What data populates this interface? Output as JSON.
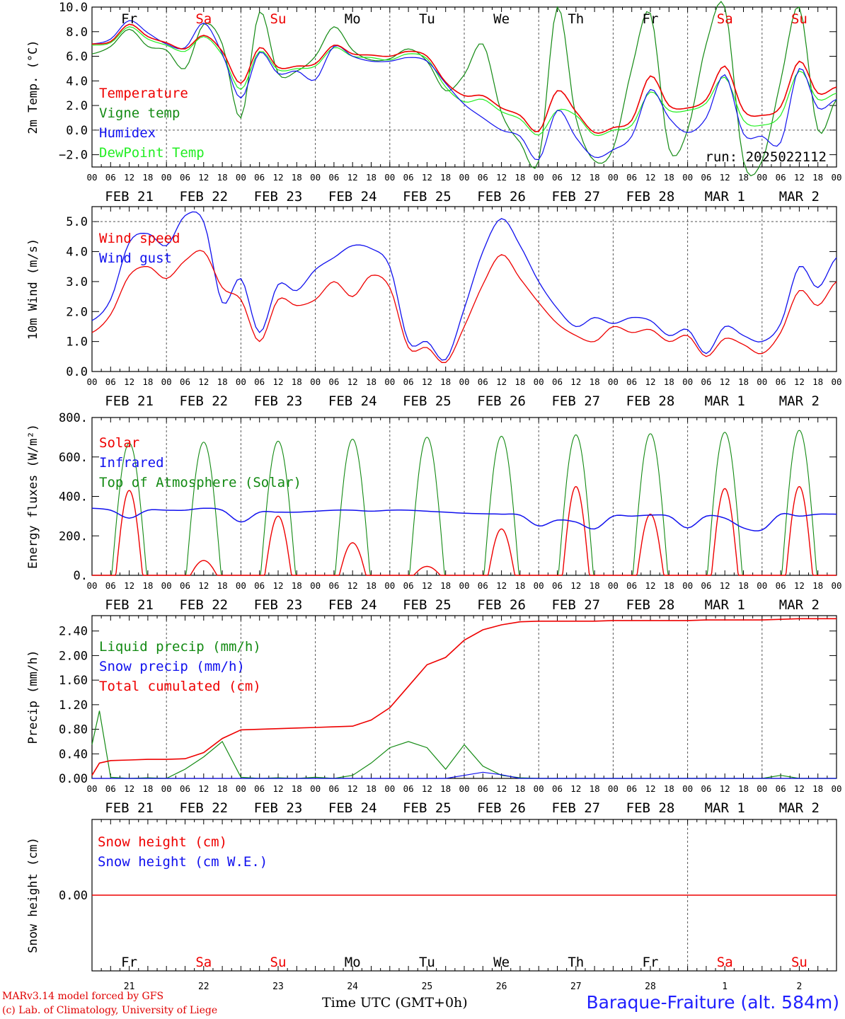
{
  "colors": {
    "red": "#ee0000",
    "green": "#138a13",
    "blue": "#1010ee",
    "lightgreen": "#22ee22",
    "axis": "#000000",
    "grid": "#555555"
  },
  "footer": {
    "credit_line1": "MARv3.14 model forced by GFS",
    "credit_line2": "(c) Lab. of Climatology, University of Liege",
    "time_label": "Time UTC (GMT+0h)",
    "station": "Baraque-Fraiture (alt. 584m)"
  },
  "time_axis": {
    "hour_ticks": [
      "00",
      "06",
      "12",
      "18"
    ],
    "dates": [
      "FEB 21",
      "FEB 22",
      "FEB 23",
      "FEB 24",
      "FEB 25",
      "FEB 26",
      "FEB 27",
      "FEB 28",
      "MAR  1",
      "MAR  2"
    ],
    "weekdays": [
      {
        "label": "Fr",
        "color": "black"
      },
      {
        "label": "Sa",
        "color": "red"
      },
      {
        "label": "Su",
        "color": "red"
      },
      {
        "label": "Mo",
        "color": "black"
      },
      {
        "label": "Tu",
        "color": "black"
      },
      {
        "label": "We",
        "color": "black"
      },
      {
        "label": "Th",
        "color": "black"
      },
      {
        "label": "Fr",
        "color": "black"
      },
      {
        "label": "Sa",
        "color": "red"
      },
      {
        "label": "Su",
        "color": "red"
      }
    ],
    "day_numbers": [
      "21",
      "22",
      "23",
      "24",
      "25",
      "26",
      "27",
      "28",
      "1",
      "2"
    ]
  },
  "chart_data": [
    {
      "type": "line",
      "ylabel": "2m Temp. (°C)",
      "ylim": [
        -3,
        10
      ],
      "yticks": [
        -2,
        0,
        2,
        4,
        6,
        8,
        10
      ],
      "ytick_labels": [
        "−2.0",
        "0.0",
        "2.0",
        "4.0",
        "6.0",
        "8.0",
        "10.0"
      ],
      "annotation": "run: 2025022112",
      "x_days": [
        0,
        0.25,
        0.5,
        0.75,
        1,
        1.25,
        1.5,
        1.75,
        2,
        2.25,
        2.5,
        2.75,
        3,
        3.25,
        3.5,
        3.75,
        4,
        4.25,
        4.5,
        4.75,
        5,
        5.25,
        5.5,
        5.75,
        6,
        6.25,
        6.5,
        6.75,
        7,
        7.25,
        7.5,
        7.75,
        8,
        8.25,
        8.5,
        8.75,
        9,
        9.25,
        9.5,
        9.75,
        10
      ],
      "series": [
        {
          "name": "Temperature",
          "color": "red",
          "values": [
            7.0,
            7.2,
            8.6,
            7.6,
            7.1,
            6.6,
            7.7,
            6.4,
            3.8,
            6.7,
            5.1,
            5.2,
            5.4,
            6.9,
            6.2,
            6.1,
            6.0,
            6.4,
            6.0,
            3.9,
            2.8,
            2.8,
            1.8,
            1.2,
            -0.1,
            3.2,
            1.5,
            -0.2,
            0.2,
            0.8,
            4.4,
            2.0,
            1.8,
            2.5,
            5.2,
            1.6,
            1.2,
            1.9,
            5.6,
            3.0,
            3.5
          ]
        },
        {
          "name": "Vigne temp",
          "color": "green",
          "values": [
            6.2,
            6.8,
            8.2,
            6.8,
            6.5,
            5.0,
            8.6,
            7.0,
            1.0,
            9.6,
            4.6,
            4.8,
            6.0,
            8.4,
            6.5,
            5.7,
            5.8,
            6.6,
            5.6,
            3.2,
            4.5,
            7.0,
            1.4,
            -1.0,
            -2.5,
            10.0,
            1.0,
            -2.5,
            -1.5,
            5.0,
            9.5,
            -1.5,
            0.0,
            7.0,
            10.0,
            -2.5,
            -2.5,
            4.0,
            10.0,
            0.0,
            2.5
          ]
        },
        {
          "name": "Humidex",
          "color": "blue",
          "values": [
            7.0,
            7.4,
            8.9,
            7.9,
            7.0,
            6.7,
            8.7,
            6.2,
            2.6,
            6.3,
            4.6,
            4.8,
            4.1,
            6.8,
            6.0,
            5.6,
            5.6,
            5.9,
            5.6,
            3.8,
            2.1,
            1.0,
            0.0,
            -0.5,
            -2.4,
            1.6,
            -0.6,
            -2.2,
            -1.6,
            -0.5,
            3.3,
            1.0,
            -0.2,
            1.0,
            4.5,
            -0.3,
            -0.5,
            -1.0,
            5.0,
            1.8,
            2.5
          ]
        },
        {
          "name": "DewPoint Temp",
          "color": "lightgreen",
          "values": [
            6.9,
            7.1,
            8.4,
            7.4,
            6.9,
            6.4,
            7.6,
            6.1,
            3.3,
            6.4,
            4.9,
            5.0,
            5.2,
            6.7,
            6.0,
            5.9,
            5.7,
            6.2,
            5.8,
            3.5,
            2.3,
            2.5,
            1.5,
            0.9,
            -0.4,
            1.6,
            1.2,
            -0.4,
            0.0,
            0.4,
            3.1,
            1.6,
            1.6,
            2.2,
            4.3,
            0.8,
            0.4,
            1.2,
            4.8,
            2.5,
            3.0
          ]
        }
      ]
    },
    {
      "type": "line",
      "ylabel": "10m Wind (m/s)",
      "ylim": [
        0,
        5.5
      ],
      "yticks": [
        0,
        1,
        2,
        3,
        4,
        5
      ],
      "ytick_labels": [
        "0.0",
        "1.0",
        "2.0",
        "3.0",
        "4.0",
        "5.0"
      ],
      "x_days": [
        0,
        0.25,
        0.5,
        0.75,
        1,
        1.25,
        1.5,
        1.75,
        2,
        2.25,
        2.5,
        2.75,
        3,
        3.25,
        3.5,
        3.75,
        4,
        4.25,
        4.5,
        4.75,
        5,
        5.25,
        5.5,
        5.75,
        6,
        6.25,
        6.5,
        6.75,
        7,
        7.25,
        7.5,
        7.75,
        8,
        8.25,
        8.5,
        8.75,
        9,
        9.25,
        9.5,
        9.75,
        10
      ],
      "series": [
        {
          "name": "Wind speed",
          "color": "red",
          "values": [
            1.3,
            1.9,
            3.2,
            3.5,
            3.1,
            3.7,
            4.0,
            2.8,
            2.4,
            1.0,
            2.4,
            2.2,
            2.4,
            3.0,
            2.5,
            3.2,
            2.8,
            0.8,
            0.8,
            0.3,
            1.5,
            2.9,
            3.9,
            3.1,
            2.3,
            1.6,
            1.2,
            1.0,
            1.5,
            1.3,
            1.4,
            1.0,
            1.2,
            0.5,
            1.1,
            0.9,
            0.6,
            1.3,
            2.7,
            2.2,
            3.0
          ]
        },
        {
          "name": "Wind gust",
          "color": "blue",
          "values": [
            1.7,
            2.4,
            4.3,
            4.6,
            4.2,
            5.2,
            5.0,
            2.3,
            3.1,
            1.3,
            2.9,
            2.7,
            3.4,
            3.8,
            4.2,
            4.1,
            3.5,
            1.0,
            1.0,
            0.4,
            2.1,
            4.0,
            5.1,
            4.2,
            3.0,
            2.1,
            1.5,
            1.8,
            1.6,
            1.8,
            1.7,
            1.2,
            1.4,
            0.6,
            1.5,
            1.2,
            1.0,
            1.6,
            3.5,
            2.8,
            3.8
          ]
        }
      ]
    },
    {
      "type": "line",
      "ylabel": "Energy fluxes (W/m²)",
      "ylim": [
        0,
        800
      ],
      "yticks": [
        0,
        200,
        400,
        600,
        800
      ],
      "ytick_labels": [
        "0.",
        "200.",
        "400.",
        "600.",
        "800."
      ],
      "series": [
        {
          "name": "Solar",
          "color": "red",
          "day_peaks": [
            430,
            75,
            300,
            165,
            45,
            235,
            450,
            310,
            440,
            450
          ]
        },
        {
          "name": "Infrared",
          "color": "blue",
          "x_days": [
            0,
            0.25,
            0.5,
            0.75,
            1,
            1.25,
            1.5,
            1.75,
            2,
            2.25,
            2.5,
            2.75,
            3,
            3.25,
            3.5,
            3.75,
            4,
            4.25,
            4.5,
            4.75,
            5,
            5.25,
            5.5,
            5.75,
            6,
            6.25,
            6.5,
            6.75,
            7,
            7.25,
            7.5,
            7.75,
            8,
            8.25,
            8.5,
            8.75,
            9,
            9.25,
            9.5,
            9.75,
            10
          ],
          "values": [
            340,
            330,
            290,
            330,
            330,
            330,
            340,
            330,
            270,
            320,
            320,
            320,
            325,
            330,
            330,
            325,
            330,
            330,
            325,
            320,
            315,
            312,
            310,
            305,
            250,
            280,
            270,
            235,
            300,
            300,
            305,
            300,
            240,
            300,
            290,
            240,
            230,
            310,
            300,
            310,
            310
          ]
        },
        {
          "name": "Top of Atmosphere (Solar)",
          "color": "green",
          "day_peaks": [
            670,
            675,
            680,
            690,
            700,
            705,
            712,
            718,
            725,
            735
          ]
        }
      ]
    },
    {
      "type": "line",
      "ylabel": "Precip (mm/h)",
      "ylim": [
        0,
        2.65
      ],
      "yticks": [
        0,
        0.4,
        0.8,
        1.2,
        1.6,
        2.0,
        2.4
      ],
      "ytick_labels": [
        "0.00",
        "0.40",
        "0.80",
        "1.20",
        "1.60",
        "2.00",
        "2.40"
      ],
      "x_days": [
        0,
        0.1,
        0.25,
        0.5,
        0.75,
        1,
        1.25,
        1.5,
        1.75,
        2,
        2.25,
        2.5,
        2.75,
        3,
        3.25,
        3.5,
        3.75,
        4,
        4.25,
        4.5,
        4.75,
        5,
        5.25,
        5.5,
        5.75,
        6,
        6.25,
        6.5,
        6.75,
        7,
        7.25,
        7.5,
        7.75,
        8,
        8.25,
        8.5,
        8.75,
        9,
        9.25,
        9.5,
        9.75,
        10
      ],
      "series": [
        {
          "name": "Liquid precip (mm/h)",
          "color": "green",
          "values": [
            0.55,
            1.1,
            0.02,
            0.0,
            0.01,
            0.0,
            0.15,
            0.35,
            0.6,
            0.02,
            0.0,
            0.01,
            0.0,
            0.02,
            0.0,
            0.05,
            0.25,
            0.5,
            0.6,
            0.5,
            0.15,
            0.55,
            0.2,
            0.05,
            0.01,
            0.0,
            0.0,
            0.0,
            0.0,
            0.0,
            0.0,
            0.0,
            0.0,
            0.0,
            0.0,
            0.0,
            0.0,
            0.0,
            0.05,
            0.0,
            0.0,
            0.0
          ]
        },
        {
          "name": "Snow precip (mm/h)",
          "color": "blue",
          "values": [
            0.0,
            0.0,
            0.0,
            0.0,
            0.0,
            0.0,
            0.0,
            0.0,
            0.0,
            0.0,
            0.0,
            0.0,
            0.0,
            0.0,
            0.0,
            0.0,
            0.0,
            0.0,
            0.0,
            0.0,
            0.0,
            0.05,
            0.1,
            0.06,
            0.0,
            0.0,
            0.0,
            0.0,
            0.0,
            0.0,
            0.0,
            0.0,
            0.0,
            0.0,
            0.0,
            0.0,
            0.0,
            0.0,
            0.0,
            0.0,
            0.0,
            0.0
          ]
        },
        {
          "name": "Total cumulated (cm)",
          "color": "red",
          "values": [
            0.05,
            0.25,
            0.29,
            0.3,
            0.31,
            0.31,
            0.32,
            0.42,
            0.65,
            0.79,
            0.8,
            0.81,
            0.82,
            0.83,
            0.84,
            0.85,
            0.95,
            1.15,
            1.5,
            1.85,
            1.97,
            2.25,
            2.42,
            2.5,
            2.55,
            2.56,
            2.56,
            2.56,
            2.56,
            2.57,
            2.57,
            2.57,
            2.57,
            2.57,
            2.58,
            2.58,
            2.58,
            2.58,
            2.59,
            2.6,
            2.6,
            2.6
          ]
        }
      ]
    },
    {
      "type": "line",
      "ylabel": "Snow height (cm)",
      "ylim": [
        -1,
        1
      ],
      "yticks": [
        0
      ],
      "ytick_labels": [
        "0.00"
      ],
      "series": [
        {
          "name": "Snow height (cm)",
          "color": "red",
          "values": [
            0,
            0
          ]
        },
        {
          "name": "Snow height (cm W.E.)",
          "color": "blue",
          "values": [
            0,
            0
          ]
        }
      ]
    }
  ]
}
